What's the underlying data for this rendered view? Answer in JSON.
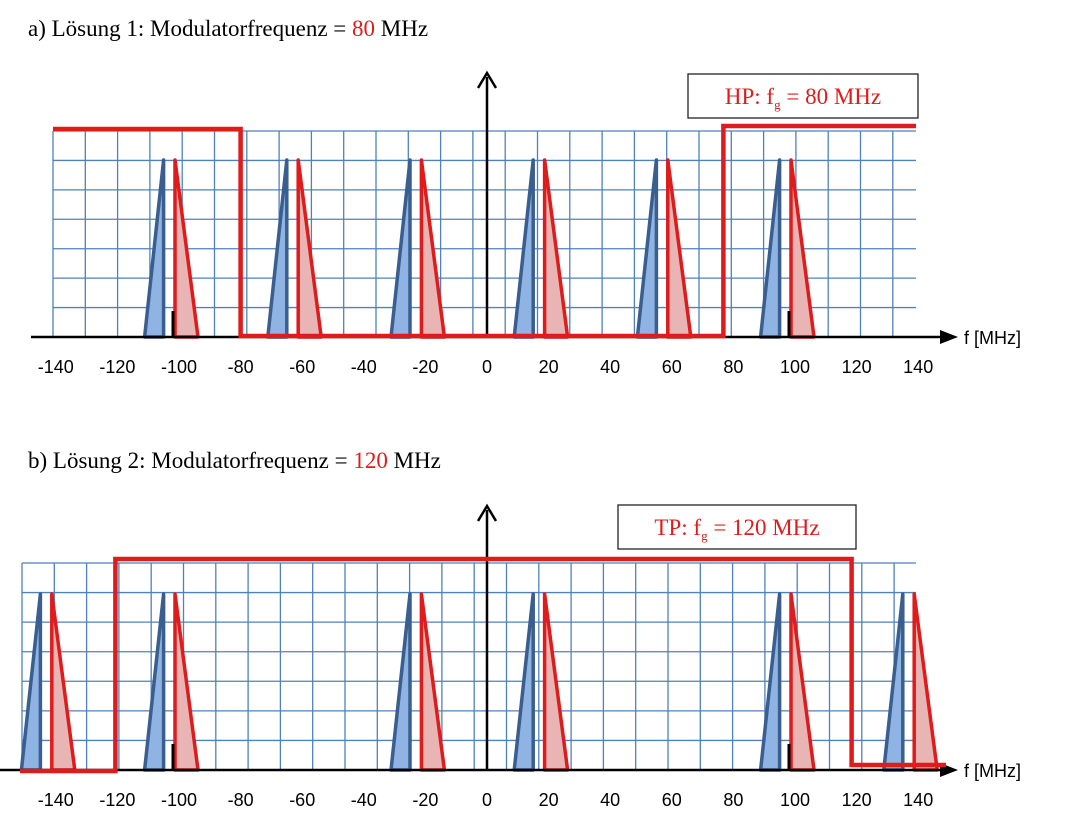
{
  "panel_a": {
    "prefix": "a)  Lösung 1: Modulatorfrequenz = ",
    "freq": "80",
    "unit": " MHz",
    "filter_label": {
      "pre": "HP: f",
      "sub": "g",
      "post": " = 80 MHz"
    }
  },
  "panel_b": {
    "prefix": "b)  Lösung 2: Modulatorfrequenz = ",
    "freq": "120",
    "unit": " MHz",
    "filter_label": {
      "pre": "TP: f",
      "sub": "g",
      "post": " = 120 MHz"
    }
  },
  "axis": {
    "unit_label": "f  [MHz]",
    "ticks": [
      "-140",
      "-120",
      "-100",
      "-80",
      "-60",
      "-40",
      "-20",
      "0",
      "20",
      "40",
      "60",
      "80",
      "100",
      "120",
      "140"
    ]
  },
  "colors": {
    "grid": "#4f81bd",
    "blue_fill": "#8fb3e3",
    "blue_stroke": "#3a5f8f",
    "red_fill": "#e8b4b4",
    "red": "#e01b1b"
  },
  "chart_data": [
    {
      "type": "spectrum",
      "xlim": [
        -140,
        140
      ],
      "filter": {
        "type": "highpass",
        "cutoff": 80
      },
      "carrier_markers": [
        -100,
        100
      ],
      "blue_lines": [
        -105,
        -65,
        -25,
        15,
        55,
        95
      ],
      "red_lines": [
        -100,
        -60,
        -20,
        20,
        60,
        100
      ]
    },
    {
      "type": "spectrum",
      "xlim": [
        -140,
        140
      ],
      "filter": {
        "type": "lowpass",
        "cutoff": 120
      },
      "carrier_markers": [
        -100,
        100
      ],
      "blue_lines": [
        -145,
        -105,
        -25,
        15,
        95,
        135
      ],
      "red_lines": [
        -140,
        -100,
        -20,
        20,
        100,
        140
      ]
    }
  ]
}
